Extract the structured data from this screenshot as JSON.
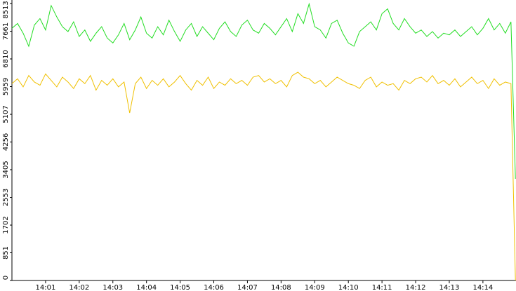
{
  "chart_data": {
    "type": "line",
    "x": [
      0,
      10,
      20,
      30,
      40,
      50,
      60,
      70,
      80,
      90,
      100,
      110,
      120,
      130,
      140,
      150,
      160,
      170,
      180,
      190,
      200,
      210,
      220,
      230,
      240,
      250,
      260,
      270,
      280,
      290,
      300,
      310,
      320,
      330,
      340,
      350,
      360,
      370,
      380,
      390,
      400,
      410,
      420,
      430,
      440,
      450,
      460,
      470,
      480,
      490,
      500,
      510,
      520,
      530,
      540,
      550,
      560,
      570,
      580,
      590,
      600,
      610,
      620,
      630,
      640,
      650,
      660,
      670,
      680,
      690,
      700,
      710,
      720,
      730,
      740,
      750,
      760,
      770,
      780,
      790,
      800,
      810,
      820,
      830,
      840,
      850,
      860,
      870,
      880,
      890,
      898
    ],
    "series": [
      {
        "color": "#22dd22",
        "values": [
          7750,
          7900,
          7600,
          7200,
          7850,
          8050,
          7700,
          8450,
          8100,
          7800,
          7650,
          7950,
          7500,
          7700,
          7350,
          7600,
          7800,
          7450,
          7300,
          7550,
          7900,
          7400,
          7700,
          8100,
          7600,
          7450,
          7800,
          7550,
          8000,
          7650,
          7350,
          7700,
          7900,
          7500,
          7800,
          7600,
          7400,
          7750,
          7950,
          7650,
          7500,
          7850,
          8000,
          7700,
          7600,
          7900,
          7750,
          7550,
          7800,
          8050,
          7650,
          8200,
          7900,
          8500,
          7800,
          7700,
          7450,
          7900,
          8000,
          7600,
          7300,
          7200,
          7650,
          7800,
          7950,
          7700,
          8200,
          8350,
          7900,
          7700,
          8050,
          7800,
          7600,
          7700,
          7500,
          7650,
          7450,
          7600,
          7550,
          7700,
          7500,
          7650,
          7800,
          7550,
          7750,
          8050,
          7700,
          7900,
          7600,
          7950,
          3125
        ]
      },
      {
        "color": "#f0c000",
        "values": [
          6050,
          6200,
          5950,
          6300,
          6100,
          6000,
          6350,
          6150,
          5950,
          6250,
          6100,
          5900,
          6200,
          6050,
          6300,
          5850,
          6150,
          6000,
          6200,
          5950,
          6100,
          5150,
          6050,
          6250,
          5900,
          6150,
          6000,
          6200,
          5950,
          6100,
          6300,
          6050,
          5850,
          6150,
          6000,
          6250,
          5900,
          6100,
          6000,
          6200,
          6050,
          6150,
          6000,
          6250,
          6300,
          6100,
          6200,
          6050,
          6150,
          5950,
          6300,
          6400,
          6250,
          6200,
          6050,
          6150,
          5950,
          6100,
          6250,
          6150,
          6050,
          6000,
          5900,
          6150,
          6250,
          5950,
          6100,
          6000,
          6050,
          5850,
          6150,
          6050,
          6200,
          6250,
          6100,
          6300,
          6050,
          6150,
          6000,
          6200,
          5950,
          6100,
          6250,
          6050,
          6150,
          5900,
          6200,
          6000,
          6100,
          6050,
          0
        ]
      }
    ],
    "xlim": [
      0,
      899
    ],
    "xticks": [
      {
        "value": 60,
        "label": "14:01"
      },
      {
        "value": 120,
        "label": "14:02"
      },
      {
        "value": 180,
        "label": "14:03"
      },
      {
        "value": 240,
        "label": "14:04"
      },
      {
        "value": 300,
        "label": "14:05"
      },
      {
        "value": 360,
        "label": "14:06"
      },
      {
        "value": 420,
        "label": "14:07"
      },
      {
        "value": 480,
        "label": "14:08"
      },
      {
        "value": 540,
        "label": "14:09"
      },
      {
        "value": 600,
        "label": "14:10"
      },
      {
        "value": 660,
        "label": "14:11"
      },
      {
        "value": 720,
        "label": "14:12"
      },
      {
        "value": 780,
        "label": "14:13"
      },
      {
        "value": 840,
        "label": "14:14"
      }
    ],
    "ylim": [
      0,
      8513
    ],
    "yticks": [
      0,
      851,
      1702,
      2553,
      3405,
      4256,
      5107,
      5959,
      6810,
      7661,
      8513
    ]
  }
}
